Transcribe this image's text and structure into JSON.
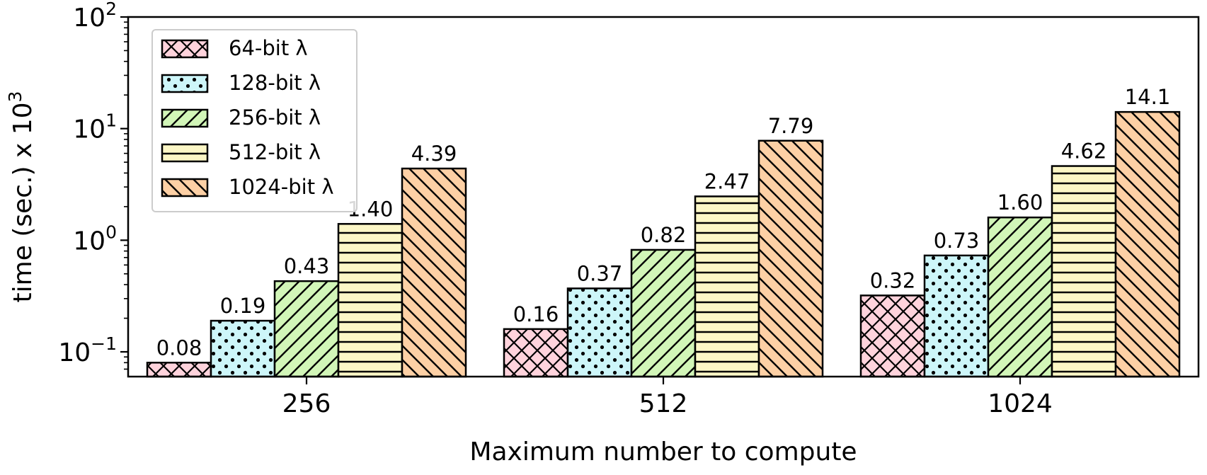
{
  "chart_data": {
    "type": "bar",
    "title": "",
    "xlabel": "Maximum number to compute",
    "ylabel": "time (sec.) x 10",
    "ylabel_sup": "3",
    "yscale": "log",
    "ylim": [
      0.06,
      100
    ],
    "categories": [
      "256",
      "512",
      "1024"
    ],
    "legend_position": "top-left",
    "grid": false,
    "series": [
      {
        "name": "64-bit λ",
        "values": [
          0.08,
          0.16,
          0.32
        ],
        "labels": [
          "0.08",
          "0.16",
          "0.32"
        ],
        "color": "#ffd3dc",
        "pattern": "crosshatch"
      },
      {
        "name": "128-bit λ",
        "values": [
          0.19,
          0.37,
          0.73
        ],
        "labels": [
          "0.19",
          "0.37",
          "0.73"
        ],
        "color": "#cdf6f9",
        "pattern": "dots"
      },
      {
        "name": "256-bit λ",
        "values": [
          0.43,
          0.82,
          1.6
        ],
        "labels": [
          "0.43",
          "0.82",
          "1.60"
        ],
        "color": "#d2f6b8",
        "pattern": "forward-diagonal"
      },
      {
        "name": "512-bit λ",
        "values": [
          1.4,
          2.47,
          4.62
        ],
        "labels": [
          "1.40",
          "2.47",
          "4.62"
        ],
        "color": "#fcf7c6",
        "pattern": "horizontal"
      },
      {
        "name": "1024-bit λ",
        "values": [
          4.39,
          7.79,
          14.1
        ],
        "labels": [
          "4.39",
          "7.79",
          "14.1"
        ],
        "color": "#fdd0a5",
        "pattern": "back-diagonal"
      }
    ],
    "yticks": [
      {
        "value": 0.1,
        "base": "10",
        "exp": "−1"
      },
      {
        "value": 1,
        "base": "10",
        "exp": "0"
      },
      {
        "value": 10,
        "base": "10",
        "exp": "1"
      },
      {
        "value": 100,
        "base": "10",
        "exp": "2"
      }
    ]
  }
}
